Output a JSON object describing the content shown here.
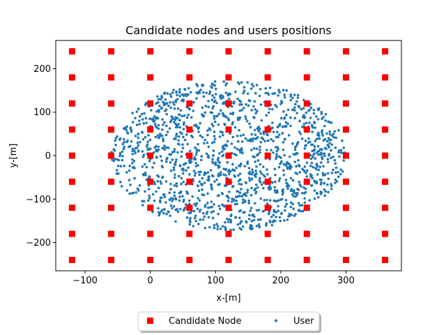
{
  "chart_data": {
    "type": "scatter",
    "title": "Candidate nodes and users positions",
    "xlabel": "x-[m]",
    "ylabel": "y-[m]",
    "xlim": [
      -145,
      385
    ],
    "ylim": [
      -265,
      265
    ],
    "xticks": [
      -100,
      0,
      100,
      200,
      300
    ],
    "yticks": [
      -200,
      -100,
      0,
      100,
      200
    ],
    "xtick_labels": [
      "−100",
      "0",
      "100",
      "200",
      "300"
    ],
    "ytick_labels": [
      "−200",
      "−100",
      "0",
      "100",
      "200"
    ],
    "grid": false,
    "legend_placement": "below, centered, 2 columns",
    "series": [
      {
        "name": "Candidate Node",
        "marker": "square",
        "color": "#ff0000",
        "x_values": [
          -120,
          -60,
          0,
          60,
          120,
          180,
          240,
          300,
          360
        ],
        "y_values": [
          -240,
          -180,
          -120,
          -60,
          0,
          60,
          120,
          180,
          240
        ]
      },
      {
        "name": "User",
        "marker": "dot",
        "color": "#1f77b4",
        "distribution": {
          "shape": "disk",
          "center": [
            120,
            0
          ],
          "radius": 180,
          "count": 1500
        }
      }
    ]
  }
}
